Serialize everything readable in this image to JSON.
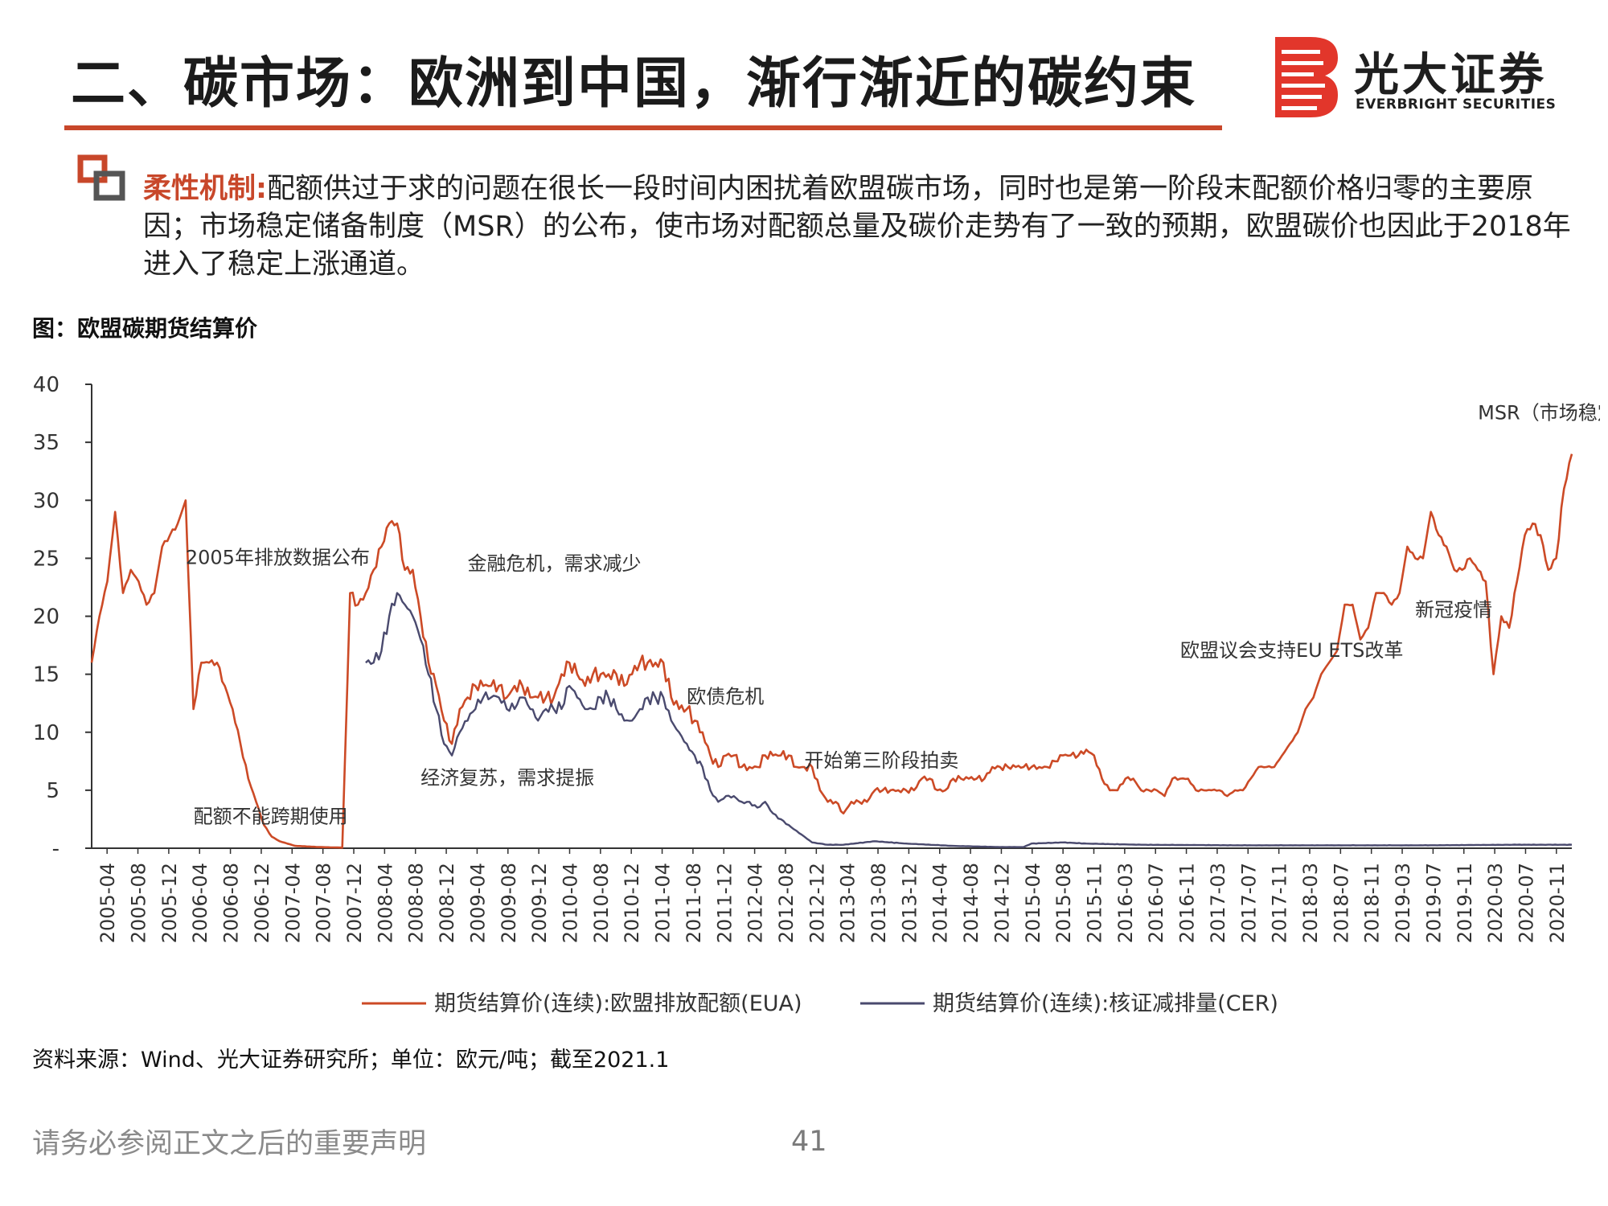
{
  "slide": {
    "title": "二、碳市场：欧洲到中国，渐行渐近的碳约束",
    "logo_cn": "光大证券",
    "logo_en": "EVERBRIGHT SECURITIES",
    "para_key": "柔性机制:",
    "para_body": "配额供过于求的问题在很长一段时间内困扰着欧盟碳市场，同时也是第一阶段末配额价格归零的主要原因；市场稳定储备制度（MSR）的公布，使市场对配额总量及碳价走势有了一致的预期，欧盟碳价也因此于2018年进入了稳定上涨通道。",
    "figure_title": "图：欧盟碳期货结算价",
    "source": "资料来源：Wind、光大证券研究所；单位：欧元/吨；截至2021.1",
    "footer_note": "请务必参阅正文之后的重要声明",
    "page_number": "41",
    "colors": {
      "accent": "#c8472a",
      "eua": "#cc4a26",
      "cer": "#4a4a6e"
    }
  },
  "chart_data": {
    "type": "line",
    "title": "",
    "ylim": [
      0,
      40
    ],
    "y_ticks": [
      "40",
      "35",
      "30",
      "25",
      "20",
      "15",
      "10",
      "5",
      "-"
    ],
    "x_ticks": [
      "2005-04",
      "2005-08",
      "2005-12",
      "2006-04",
      "2006-08",
      "2006-12",
      "2007-04",
      "2007-08",
      "2007-12",
      "2008-04",
      "2008-08",
      "2008-12",
      "2009-04",
      "2009-08",
      "2009-12",
      "2010-04",
      "2010-08",
      "2010-12",
      "2011-04",
      "2011-08",
      "2011-12",
      "2012-04",
      "2012-08",
      "2012-12",
      "2013-04",
      "2013-08",
      "2013-12",
      "2014-04",
      "2014-08",
      "2014-12",
      "2015-04",
      "2015-08",
      "2015-11",
      "2016-03",
      "2016-07",
      "2016-11",
      "2017-03",
      "2017-07",
      "2017-11",
      "2018-03",
      "2018-07",
      "2018-11",
      "2019-03",
      "2019-07",
      "2019-11",
      "2020-03",
      "2020-07",
      "2020-11"
    ],
    "series": [
      {
        "name": "期货结算价(连续):欧盟排放配额(EUA)",
        "color": "#cc4a26",
        "points": [
          [
            "2005-04",
            16
          ],
          [
            "2005-05",
            20
          ],
          [
            "2005-06",
            23
          ],
          [
            "2005-07",
            29
          ],
          [
            "2005-08",
            22
          ],
          [
            "2005-09",
            24
          ],
          [
            "2005-10",
            23
          ],
          [
            "2005-11",
            21
          ],
          [
            "2005-12",
            22
          ],
          [
            "2006-01",
            26
          ],
          [
            "2006-02",
            27
          ],
          [
            "2006-03",
            28
          ],
          [
            "2006-04",
            30
          ],
          [
            "2006-05",
            12
          ],
          [
            "2006-06",
            16
          ],
          [
            "2006-07",
            16
          ],
          [
            "2006-08",
            16
          ],
          [
            "2006-09",
            14
          ],
          [
            "2006-10",
            12
          ],
          [
            "2006-11",
            9
          ],
          [
            "2006-12",
            6
          ],
          [
            "2007-01",
            4
          ],
          [
            "2007-02",
            2
          ],
          [
            "2007-03",
            1
          ],
          [
            "2007-04",
            0.6
          ],
          [
            "2007-06",
            0.2
          ],
          [
            "2007-09",
            0.1
          ],
          [
            "2007-12",
            0.05
          ],
          [
            "2008-01",
            22
          ],
          [
            "2008-02",
            21
          ],
          [
            "2008-03",
            22
          ],
          [
            "2008-04",
            24
          ],
          [
            "2008-05",
            26
          ],
          [
            "2008-06",
            28
          ],
          [
            "2008-07",
            28
          ],
          [
            "2008-08",
            24
          ],
          [
            "2008-09",
            24
          ],
          [
            "2008-10",
            20
          ],
          [
            "2008-11",
            16
          ],
          [
            "2008-12",
            14
          ],
          [
            "2009-01",
            11
          ],
          [
            "2009-02",
            9
          ],
          [
            "2009-03",
            12
          ],
          [
            "2009-04",
            13
          ],
          [
            "2009-05",
            14
          ],
          [
            "2009-06",
            14
          ],
          [
            "2009-07",
            14
          ],
          [
            "2009-08",
            14
          ],
          [
            "2009-09",
            13
          ],
          [
            "2009-10",
            14
          ],
          [
            "2009-11",
            14
          ],
          [
            "2009-12",
            13
          ],
          [
            "2010-01",
            13
          ],
          [
            "2010-02",
            13
          ],
          [
            "2010-03",
            13
          ],
          [
            "2010-04",
            15
          ],
          [
            "2010-05",
            16
          ],
          [
            "2010-06",
            15
          ],
          [
            "2010-07",
            14
          ],
          [
            "2010-08",
            15
          ],
          [
            "2010-09",
            15
          ],
          [
            "2010-10",
            15
          ],
          [
            "2010-11",
            15
          ],
          [
            "2010-12",
            14
          ],
          [
            "2011-01",
            15
          ],
          [
            "2011-02",
            16
          ],
          [
            "2011-03",
            16
          ],
          [
            "2011-04",
            16
          ],
          [
            "2011-05",
            16
          ],
          [
            "2011-06",
            13
          ],
          [
            "2011-07",
            12
          ],
          [
            "2011-08",
            12
          ],
          [
            "2011-09",
            11
          ],
          [
            "2011-10",
            10
          ],
          [
            "2011-11",
            8
          ],
          [
            "2011-12",
            7
          ],
          [
            "2012-01",
            8
          ],
          [
            "2012-02",
            8
          ],
          [
            "2012-03",
            7
          ],
          [
            "2012-04",
            7
          ],
          [
            "2012-05",
            7
          ],
          [
            "2012-06",
            8
          ],
          [
            "2012-07",
            8
          ],
          [
            "2012-08",
            8
          ],
          [
            "2012-09",
            8
          ],
          [
            "2012-10",
            7
          ],
          [
            "2012-11",
            7
          ],
          [
            "2012-12",
            7
          ],
          [
            "2013-01",
            5
          ],
          [
            "2013-02",
            4
          ],
          [
            "2013-03",
            4
          ],
          [
            "2013-04",
            3
          ],
          [
            "2013-05",
            4
          ],
          [
            "2013-06",
            4
          ],
          [
            "2013-07",
            4
          ],
          [
            "2013-08",
            5
          ],
          [
            "2013-09",
            5
          ],
          [
            "2013-10",
            5
          ],
          [
            "2013-11",
            5
          ],
          [
            "2013-12",
            5
          ],
          [
            "2014-01",
            5
          ],
          [
            "2014-02",
            6
          ],
          [
            "2014-03",
            6
          ],
          [
            "2014-04",
            5
          ],
          [
            "2014-05",
            5
          ],
          [
            "2014-06",
            6
          ],
          [
            "2014-07",
            6
          ],
          [
            "2014-08",
            6
          ],
          [
            "2014-09",
            6
          ],
          [
            "2014-10",
            6
          ],
          [
            "2014-11",
            7
          ],
          [
            "2014-12",
            7
          ],
          [
            "2015-01",
            7
          ],
          [
            "2015-02",
            7
          ],
          [
            "2015-03",
            7
          ],
          [
            "2015-04",
            7
          ],
          [
            "2015-05",
            7
          ],
          [
            "2015-06",
            7
          ],
          [
            "2015-07",
            7.5
          ],
          [
            "2015-08",
            8
          ],
          [
            "2015-09",
            8
          ],
          [
            "2015-10",
            8
          ],
          [
            "2015-11",
            8.5
          ],
          [
            "2015-12",
            8
          ],
          [
            "2016-01",
            6
          ],
          [
            "2016-02",
            5
          ],
          [
            "2016-03",
            5
          ],
          [
            "2016-04",
            6
          ],
          [
            "2016-05",
            6
          ],
          [
            "2016-06",
            5
          ],
          [
            "2016-07",
            5
          ],
          [
            "2016-08",
            5
          ],
          [
            "2016-09",
            4.5
          ],
          [
            "2016-10",
            6
          ],
          [
            "2016-11",
            6
          ],
          [
            "2016-12",
            6
          ],
          [
            "2017-01",
            5
          ],
          [
            "2017-02",
            5
          ],
          [
            "2017-03",
            5
          ],
          [
            "2017-04",
            5
          ],
          [
            "2017-05",
            4.5
          ],
          [
            "2017-06",
            5
          ],
          [
            "2017-07",
            5
          ],
          [
            "2017-08",
            6
          ],
          [
            "2017-09",
            7
          ],
          [
            "2017-10",
            7
          ],
          [
            "2017-11",
            7
          ],
          [
            "2017-12",
            8
          ],
          [
            "2018-01",
            9
          ],
          [
            "2018-02",
            10
          ],
          [
            "2018-03",
            12
          ],
          [
            "2018-04",
            13
          ],
          [
            "2018-05",
            15
          ],
          [
            "2018-06",
            16
          ],
          [
            "2018-07",
            17
          ],
          [
            "2018-08",
            21
          ],
          [
            "2018-09",
            21
          ],
          [
            "2018-10",
            18
          ],
          [
            "2018-11",
            19
          ],
          [
            "2018-12",
            22
          ],
          [
            "2019-01",
            22
          ],
          [
            "2019-02",
            21
          ],
          [
            "2019-03",
            22
          ],
          [
            "2019-04",
            26
          ],
          [
            "2019-05",
            25
          ],
          [
            "2019-06",
            25
          ],
          [
            "2019-07",
            29
          ],
          [
            "2019-08",
            27
          ],
          [
            "2019-09",
            26
          ],
          [
            "2019-10",
            24
          ],
          [
            "2019-11",
            24
          ],
          [
            "2019-12",
            25
          ],
          [
            "2020-01",
            24
          ],
          [
            "2020-02",
            23
          ],
          [
            "2020-03",
            15
          ],
          [
            "2020-04",
            20
          ],
          [
            "2020-05",
            19
          ],
          [
            "2020-06",
            23
          ],
          [
            "2020-07",
            27
          ],
          [
            "2020-08",
            28
          ],
          [
            "2020-09",
            27
          ],
          [
            "2020-10",
            24
          ],
          [
            "2020-11",
            25
          ],
          [
            "2020-12",
            31
          ],
          [
            "2021-01",
            34
          ]
        ]
      },
      {
        "name": "期货结算价(连续):核证减排量(CER)",
        "color": "#4a4a6e",
        "points": [
          [
            "2008-03",
            16
          ],
          [
            "2008-04",
            16
          ],
          [
            "2008-05",
            17
          ],
          [
            "2008-06",
            20
          ],
          [
            "2008-07",
            22
          ],
          [
            "2008-08",
            21
          ],
          [
            "2008-09",
            20
          ],
          [
            "2008-10",
            18
          ],
          [
            "2008-11",
            15
          ],
          [
            "2008-12",
            12
          ],
          [
            "2009-01",
            9
          ],
          [
            "2009-02",
            8
          ],
          [
            "2009-03",
            10
          ],
          [
            "2009-04",
            11
          ],
          [
            "2009-05",
            12
          ],
          [
            "2009-06",
            13
          ],
          [
            "2009-07",
            13
          ],
          [
            "2009-08",
            13
          ],
          [
            "2009-09",
            12
          ],
          [
            "2009-10",
            12
          ],
          [
            "2009-11",
            13
          ],
          [
            "2009-12",
            12
          ],
          [
            "2010-01",
            11
          ],
          [
            "2010-02",
            12
          ],
          [
            "2010-03",
            12
          ],
          [
            "2010-04",
            12
          ],
          [
            "2010-05",
            14
          ],
          [
            "2010-06",
            13
          ],
          [
            "2010-07",
            12
          ],
          [
            "2010-08",
            12
          ],
          [
            "2010-09",
            13
          ],
          [
            "2010-10",
            13
          ],
          [
            "2010-11",
            12
          ],
          [
            "2010-12",
            11
          ],
          [
            "2011-01",
            11
          ],
          [
            "2011-02",
            12
          ],
          [
            "2011-03",
            13
          ],
          [
            "2011-04",
            13
          ],
          [
            "2011-05",
            13
          ],
          [
            "2011-06",
            11
          ],
          [
            "2011-07",
            10
          ],
          [
            "2011-08",
            9
          ],
          [
            "2011-09",
            8
          ],
          [
            "2011-10",
            7
          ],
          [
            "2011-11",
            5
          ],
          [
            "2011-12",
            4
          ],
          [
            "2012-01",
            4.5
          ],
          [
            "2012-02",
            4.5
          ],
          [
            "2012-03",
            4
          ],
          [
            "2012-04",
            4
          ],
          [
            "2012-05",
            3.5
          ],
          [
            "2012-06",
            4
          ],
          [
            "2012-07",
            3
          ],
          [
            "2012-08",
            2.5
          ],
          [
            "2012-09",
            2
          ],
          [
            "2012-10",
            1.5
          ],
          [
            "2012-11",
            1
          ],
          [
            "2012-12",
            0.5
          ],
          [
            "2013-02",
            0.3
          ],
          [
            "2013-04",
            0.3
          ],
          [
            "2013-08",
            0.6
          ],
          [
            "2013-12",
            0.4
          ],
          [
            "2014-06",
            0.2
          ],
          [
            "2014-12",
            0.1
          ],
          [
            "2015-03",
            0.1
          ],
          [
            "2015-04",
            0.4
          ],
          [
            "2015-08",
            0.5
          ],
          [
            "2015-11",
            0.4
          ],
          [
            "2016-06",
            0.3
          ],
          [
            "2017-06",
            0.25
          ],
          [
            "2018-06",
            0.25
          ],
          [
            "2019-06",
            0.25
          ],
          [
            "2020-06",
            0.3
          ],
          [
            "2021-01",
            0.3
          ]
        ]
      }
    ],
    "annotations": [
      {
        "text": "MSR（市场稳定储备）",
        "at": [
          "2020-01",
          37
        ]
      },
      {
        "text": "2005年排放数据公布",
        "at": [
          "2006-04",
          24.5
        ]
      },
      {
        "text": "金融危机，需求减少",
        "at": [
          "2009-04",
          24
        ]
      },
      {
        "text": "欧债危机",
        "at": [
          "2011-08",
          12.5
        ]
      },
      {
        "text": "经济复苏，需求提振",
        "at": [
          "2008-10",
          5.5
        ]
      },
      {
        "text": "配额不能跨期使用",
        "at": [
          "2006-05",
          2.2
        ]
      },
      {
        "text": "开始第三阶段拍卖",
        "at": [
          "2012-11",
          7
        ]
      },
      {
        "text": "欧盟议会支持EU ETS改革",
        "at": [
          "2016-11",
          16.5
        ]
      },
      {
        "text": "新冠疫情",
        "at": [
          "2019-05",
          20
        ]
      }
    ],
    "legend": [
      "期货结算价(连续):欧盟排放配额(EUA)",
      "期货结算价(连续):核证减排量(CER)"
    ],
    "legend_placement": "bottom"
  }
}
